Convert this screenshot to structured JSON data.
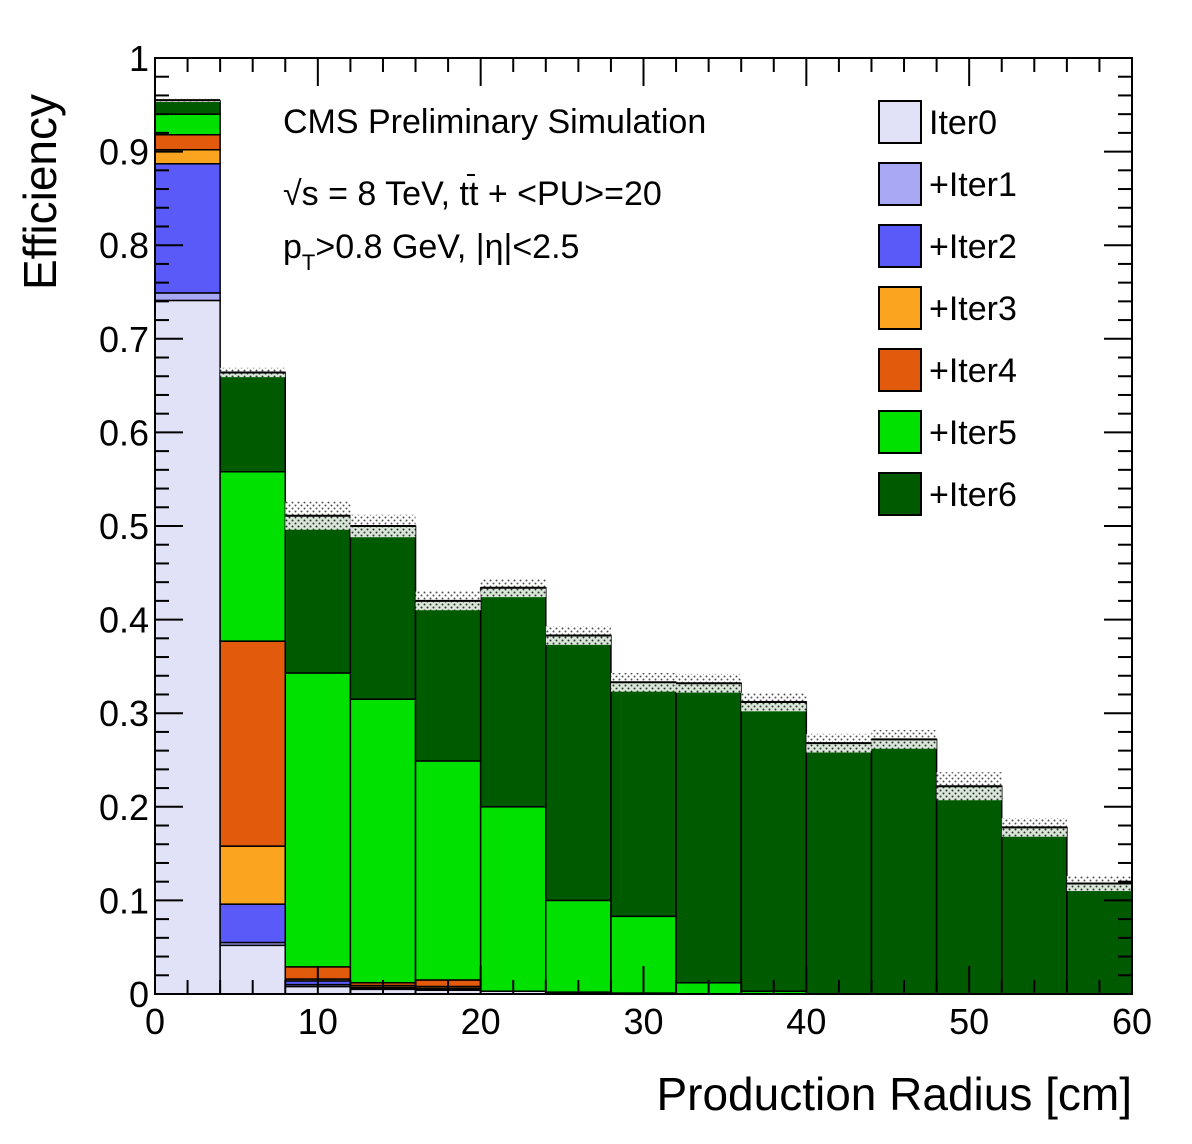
{
  "chart_data": {
    "type": "bar",
    "stacked": true,
    "xlabel": "Production Radius [cm]",
    "ylabel": "Efficiency",
    "xlim": [
      0,
      60
    ],
    "ylim": [
      0,
      1
    ],
    "x_ticks": [
      "0",
      "10",
      "20",
      "30",
      "40",
      "50",
      "60"
    ],
    "y_ticks": [
      "0",
      "0.1",
      "0.2",
      "0.3",
      "0.4",
      "0.5",
      "0.6",
      "0.7",
      "0.8",
      "0.9",
      "1"
    ],
    "bin_edges": [
      0,
      4,
      8,
      12,
      16,
      20,
      24,
      28,
      32,
      36,
      40,
      44,
      48,
      52,
      56,
      60
    ],
    "series": [
      {
        "name": "Iter0",
        "color": "#e1e1f7",
        "values": [
          0.741,
          0.052,
          0.008,
          0.005,
          0.004,
          0.003,
          0.002,
          0.001,
          0.0,
          0.0,
          0.0,
          0.0,
          0.0,
          0.0,
          0.0
        ]
      },
      {
        "name": "+Iter1",
        "color": "#a8a8f5",
        "values": [
          0.008,
          0.003,
          0.002,
          0.001,
          0.001,
          0.0,
          0.0,
          0.0,
          0.0,
          0.0,
          0.0,
          0.0,
          0.0,
          0.0,
          0.0
        ]
      },
      {
        "name": "+Iter2",
        "color": "#5a5af8",
        "values": [
          0.138,
          0.041,
          0.004,
          0.001,
          0.001,
          0.0,
          0.0,
          0.0,
          0.0,
          0.0,
          0.0,
          0.0,
          0.0,
          0.0,
          0.0
        ]
      },
      {
        "name": "+Iter3",
        "color": "#fba420",
        "values": [
          0.015,
          0.062,
          0.002,
          0.002,
          0.002,
          0.0,
          0.0,
          0.0,
          0.0,
          0.0,
          0.0,
          0.0,
          0.0,
          0.0,
          0.0
        ]
      },
      {
        "name": "+Iter4",
        "color": "#e25a0c",
        "values": [
          0.016,
          0.219,
          0.013,
          0.003,
          0.007,
          0.0,
          0.0,
          0.0,
          0.0,
          0.0,
          0.0,
          0.0,
          0.0,
          0.0,
          0.0
        ]
      },
      {
        "name": "+Iter5",
        "color": "#00e100",
        "values": [
          0.022,
          0.181,
          0.314,
          0.303,
          0.234,
          0.197,
          0.098,
          0.082,
          0.012,
          0.003,
          0.0,
          0.0,
          0.0,
          0.0,
          0.0
        ]
      },
      {
        "name": "+Iter6",
        "color": "#005a00",
        "values": [
          0.014,
          0.106,
          0.168,
          0.185,
          0.171,
          0.234,
          0.283,
          0.25,
          0.32,
          0.309,
          0.268,
          0.272,
          0.222,
          0.178,
          0.118
        ]
      }
    ],
    "totals": [
      0.955,
      0.664,
      0.511,
      0.5,
      0.42,
      0.434,
      0.383,
      0.333,
      0.332,
      0.312,
      0.268,
      0.272,
      0.222,
      0.178,
      0.118
    ],
    "uncertainties": [
      0.002,
      0.005,
      0.015,
      0.012,
      0.01,
      0.01,
      0.01,
      0.01,
      0.01,
      0.01,
      0.01,
      0.01,
      0.015,
      0.01,
      0.008
    ],
    "annotations": {
      "line1": "CMS Preliminary Simulation",
      "line2_sqrt": "√s",
      "line2_rest": " = 8 TeV, tt + <PU>=20",
      "line3_p": "p",
      "line3_sub": "T",
      "line3_rest": ">0.8 GeV, |η|<2.5"
    },
    "legend_position": "top-right",
    "grid": false
  }
}
